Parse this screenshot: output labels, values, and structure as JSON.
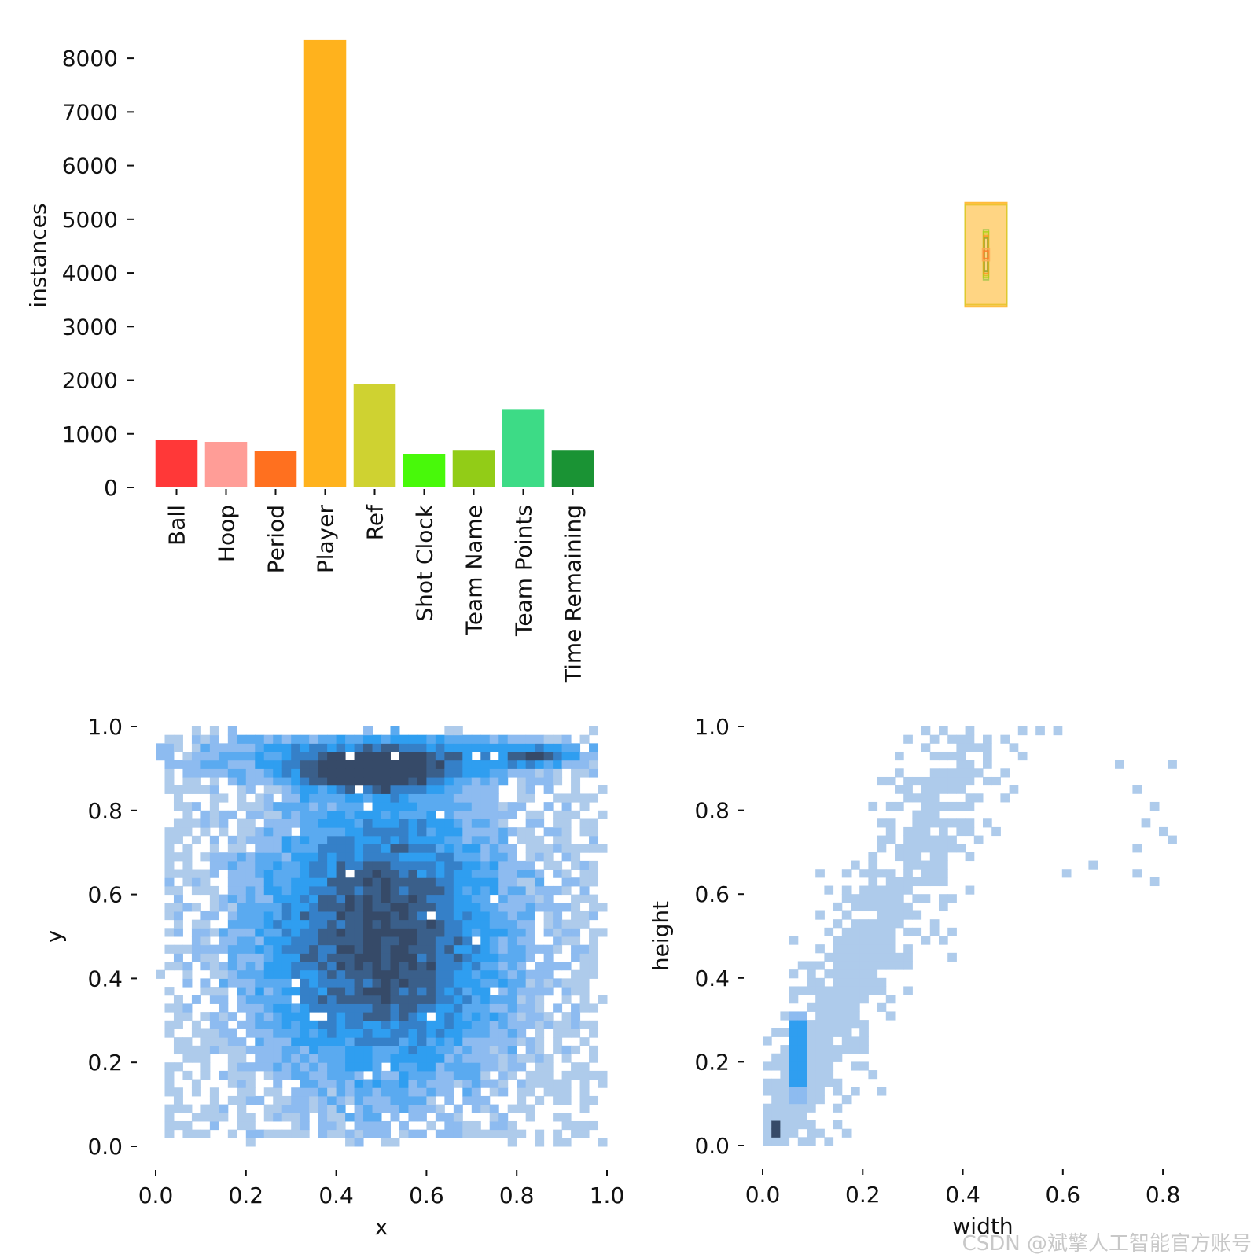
{
  "chart_data": [
    {
      "type": "bar",
      "ylabel": "instances",
      "xlabel": "",
      "ylim": [
        0,
        8500
      ],
      "yticks": [
        "0",
        "1000",
        "2000",
        "3000",
        "4000",
        "5000",
        "6000",
        "7000",
        "8000"
      ],
      "categories": [
        "Ball",
        "Hoop",
        "Period",
        "Player",
        "Ref",
        "Shot Clock",
        "Team Name",
        "Team Points",
        "Time Remaining"
      ],
      "values": [
        880,
        850,
        680,
        8340,
        1920,
        620,
        700,
        1460,
        700
      ],
      "colors": [
        "#ff3838",
        "#ff9d97",
        "#ff701f",
        "#ffb21d",
        "#cfd231",
        "#48f90a",
        "#92cc17",
        "#3ddb86",
        "#1a9334"
      ]
    },
    {
      "type": "box-overlay",
      "xlabel": "",
      "ylabel": "",
      "boxes": [
        {
          "class": "Player",
          "width_frac": 0.1,
          "height_frac": 0.25,
          "color": "#ffb21d"
        },
        {
          "class": "Ref",
          "width_frac": 0.1,
          "height_frac": 0.24,
          "color": "#cfd231"
        },
        {
          "class": "Team Points",
          "width_frac": 0.012,
          "height_frac": 0.12,
          "color": "#3ddb86"
        },
        {
          "class": "Shot Clock",
          "width_frac": 0.012,
          "height_frac": 0.11,
          "color": "#48f90a"
        },
        {
          "class": "Team Name",
          "width_frac": 0.01,
          "height_frac": 0.1,
          "color": "#92cc17"
        },
        {
          "class": "Period",
          "width_frac": 0.01,
          "height_frac": 0.09,
          "color": "#ff701f"
        },
        {
          "class": "Time Remaining",
          "width_frac": 0.008,
          "height_frac": 0.08,
          "color": "#1a9334"
        },
        {
          "class": "Hoop",
          "width_frac": 0.016,
          "height_frac": 0.028,
          "color": "#ff9d97"
        },
        {
          "class": "Ball",
          "width_frac": 0.01,
          "height_frac": 0.018,
          "color": "#ff3838"
        }
      ]
    },
    {
      "type": "heatmap",
      "xlabel": "x",
      "ylabel": "y",
      "xlim": [
        0,
        1
      ],
      "ylim": [
        0,
        1
      ],
      "xticks": [
        "0.0",
        "0.2",
        "0.4",
        "0.6",
        "0.8",
        "1.0"
      ],
      "yticks": [
        "0.0",
        "0.2",
        "0.4",
        "0.6",
        "0.8",
        "1.0"
      ],
      "bins": 50,
      "hotspots": [
        {
          "x": 0.5,
          "y": 0.5,
          "sx": 0.2,
          "sy": 0.25,
          "w": 1.0
        },
        {
          "x": 0.48,
          "y": 0.89,
          "sx": 0.1,
          "sy": 0.03,
          "w": 1.0
        },
        {
          "x": 0.85,
          "y": 0.93,
          "sx": 0.05,
          "sy": 0.015,
          "w": 0.7
        },
        {
          "x": 0.5,
          "y": 0.93,
          "sx": 0.35,
          "sy": 0.04,
          "w": 0.5
        }
      ]
    },
    {
      "type": "heatmap",
      "xlabel": "width",
      "ylabel": "height",
      "xlim": [
        0,
        0.88
      ],
      "ylim": [
        0,
        1
      ],
      "xticks": [
        "0.0",
        "0.2",
        "0.4",
        "0.6",
        "0.8"
      ],
      "yticks": [
        "0.0",
        "0.2",
        "0.4",
        "0.6",
        "0.8",
        "1.0"
      ],
      "bins": 50,
      "ridge": {
        "slope": 2.25,
        "spread": 0.06,
        "hotspot_x": 0.07,
        "hotspot_y": 0.22,
        "dense_x": 0.03,
        "dense_y": 0.04
      }
    }
  ],
  "watermark": "CSDN @斌擎人工智能官方账号"
}
